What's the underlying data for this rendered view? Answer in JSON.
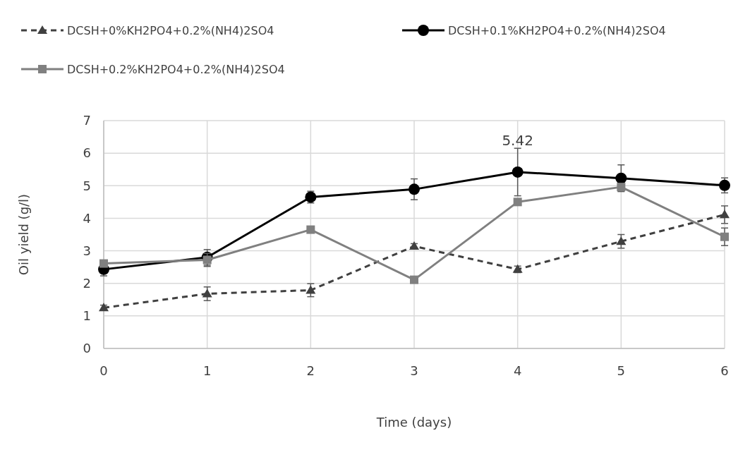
{
  "chart_data": {
    "type": "line",
    "xlabel": "Time (days)",
    "ylabel": "Oil yield (g/l)",
    "x": [
      0,
      1,
      2,
      3,
      4,
      5,
      6
    ],
    "xlim": [
      0,
      6
    ],
    "xticks": [
      0,
      1,
      2,
      3,
      4,
      5,
      6
    ],
    "ylim": [
      0,
      7
    ],
    "yticks": [
      0,
      1,
      2,
      3,
      4,
      5,
      6,
      7
    ],
    "grid": true,
    "legend": "top",
    "series": [
      {
        "name": "DCSH+0%KH2PO4+0.2%(NH4)2SO4",
        "color": "#404040",
        "marker": "triangle",
        "line_style": "dashed",
        "values": [
          1.25,
          1.68,
          1.79,
          3.14,
          2.43,
          3.29,
          4.11
        ],
        "errors": [
          0.08,
          0.21,
          0.2,
          0.08,
          0.1,
          0.21,
          0.27
        ]
      },
      {
        "name": "DCSH+0.1%KH2PO4+0.2%(NH4)2SO4",
        "color": "#000000",
        "marker": "circle",
        "line_style": "solid",
        "values": [
          2.43,
          2.8,
          4.65,
          4.89,
          5.42,
          5.23,
          5.01
        ],
        "errors": [
          0.2,
          0.24,
          0.18,
          0.32,
          0.73,
          0.41,
          0.23
        ],
        "value_labels": [
          null,
          null,
          null,
          null,
          "5.42",
          null,
          null
        ]
      },
      {
        "name": "DCSH+0.2%KH2PO4+0.2%(NH4)2SO4",
        "color": "#808080",
        "marker": "square",
        "line_style": "solid",
        "values": [
          2.61,
          2.72,
          3.65,
          2.11,
          4.5,
          4.96,
          3.43
        ],
        "errors": [
          null,
          0.2,
          null,
          null,
          null,
          null,
          0.27
        ]
      }
    ]
  }
}
